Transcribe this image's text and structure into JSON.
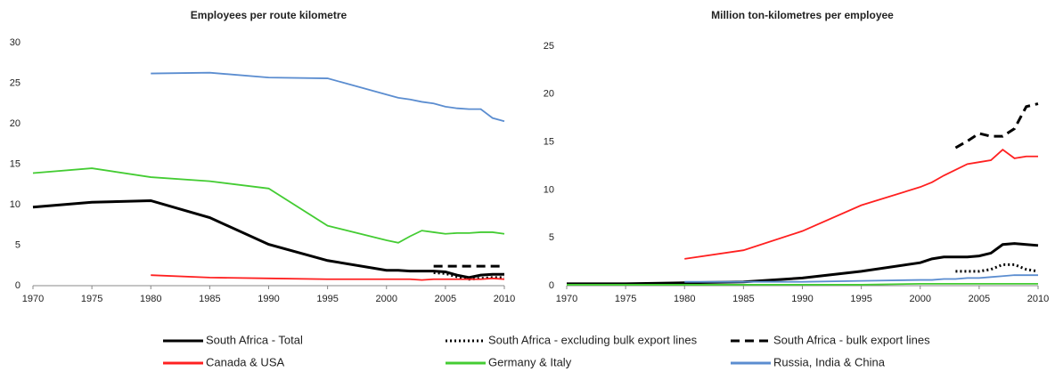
{
  "chart_data": [
    {
      "type": "line",
      "title": "Employees per route kilometre",
      "x": [
        1970,
        1975,
        1980,
        1985,
        1990,
        1995,
        2000,
        2001,
        2002,
        2003,
        2004,
        2005,
        2006,
        2007,
        2008,
        2009,
        2010
      ],
      "xlim": [
        1970,
        2010
      ],
      "xticks": [
        1970,
        1975,
        1980,
        1985,
        1990,
        1995,
        2000,
        2005,
        2010
      ],
      "ylim": [
        0,
        30
      ],
      "yticks": [
        0,
        5,
        10,
        15,
        20,
        25,
        30
      ],
      "series": [
        {
          "name": "South Africa - Total",
          "color": "#000000",
          "style": "solid",
          "linewidth": 3,
          "values": [
            9.7,
            10.3,
            10.5,
            8.4,
            5.1,
            3.1,
            1.9,
            1.9,
            1.8,
            1.8,
            1.8,
            1.7,
            1.3,
            1.0,
            1.3,
            1.4,
            1.4
          ]
        },
        {
          "name": "South Africa - excluding bulk export lines",
          "color": "#000000",
          "style": "dotted",
          "linewidth": 3,
          "values": [
            null,
            null,
            null,
            null,
            null,
            null,
            null,
            null,
            null,
            null,
            1.6,
            1.5,
            1.1,
            0.8,
            0.9,
            1.0,
            1.0
          ]
        },
        {
          "name": "South Africa - bulk export lines",
          "color": "#000000",
          "style": "dashed",
          "linewidth": 3,
          "values": [
            null,
            null,
            null,
            null,
            null,
            null,
            null,
            null,
            null,
            null,
            2.4,
            2.4,
            2.4,
            2.4,
            2.4,
            2.4,
            2.4
          ]
        },
        {
          "name": "Canada & USA",
          "color": "#ff2020",
          "style": "solid",
          "linewidth": 1.8,
          "values": [
            null,
            null,
            1.3,
            1.0,
            0.9,
            0.8,
            0.8,
            0.8,
            0.8,
            0.7,
            0.8,
            0.8,
            0.8,
            0.8,
            0.8,
            0.9,
            0.8
          ]
        },
        {
          "name": "Germany & Italy",
          "color": "#44cc33",
          "style": "solid",
          "linewidth": 1.8,
          "values": [
            13.9,
            14.5,
            13.4,
            12.9,
            12.0,
            7.4,
            5.6,
            5.3,
            6.1,
            6.8,
            6.6,
            6.4,
            6.5,
            6.5,
            6.6,
            6.6,
            6.4
          ]
        },
        {
          "name": "Russia, India & China",
          "color": "#5b8dd0",
          "style": "solid",
          "linewidth": 1.8,
          "values": [
            null,
            null,
            26.2,
            26.3,
            25.7,
            25.6,
            23.6,
            23.2,
            23.0,
            22.7,
            22.5,
            22.1,
            21.9,
            21.8,
            21.8,
            20.7,
            20.3
          ]
        }
      ]
    },
    {
      "type": "line",
      "title": "Million ton-kilometres per employee",
      "x": [
        1970,
        1975,
        1980,
        1985,
        1990,
        1995,
        2000,
        2001,
        2002,
        2003,
        2004,
        2005,
        2006,
        2007,
        2008,
        2009,
        2010
      ],
      "xlim": [
        1970,
        2010
      ],
      "xticks": [
        1970,
        1975,
        1980,
        1985,
        1990,
        1995,
        2000,
        2005,
        2010
      ],
      "ylim": [
        0,
        25
      ],
      "yticks": [
        0,
        5,
        10,
        15,
        20,
        25
      ],
      "series": [
        {
          "color": "#000000",
          "style": "solid",
          "linewidth": 3,
          "values": [
            0.2,
            0.2,
            0.3,
            0.4,
            0.8,
            1.5,
            2.4,
            2.8,
            3.0,
            3.0,
            3.0,
            3.1,
            3.4,
            4.3,
            4.4,
            4.3,
            4.2
          ]
        },
        {
          "color": "#000000",
          "style": "dotted",
          "linewidth": 3,
          "values": [
            null,
            null,
            null,
            null,
            null,
            null,
            null,
            null,
            null,
            1.5,
            1.5,
            1.5,
            1.7,
            2.2,
            2.2,
            1.7,
            1.5
          ]
        },
        {
          "color": "#000000",
          "style": "dashed",
          "linewidth": 3,
          "values": [
            null,
            null,
            null,
            null,
            null,
            null,
            null,
            null,
            null,
            14.4,
            15.1,
            15.9,
            15.6,
            15.6,
            16.4,
            18.7,
            19.0
          ]
        },
        {
          "color": "#ff2020",
          "style": "solid",
          "linewidth": 1.8,
          "values": [
            null,
            null,
            2.8,
            3.7,
            5.7,
            8.4,
            10.3,
            10.8,
            11.5,
            12.1,
            12.7,
            12.9,
            13.1,
            14.2,
            13.3,
            13.5,
            13.5
          ]
        },
        {
          "color": "#44cc33",
          "style": "solid",
          "linewidth": 1.8,
          "values": [
            0.1,
            0.1,
            0.1,
            0.1,
            0.1,
            0.1,
            0.2,
            0.2,
            0.2,
            0.2,
            0.2,
            0.2,
            0.2,
            0.2,
            0.2,
            0.2,
            0.2
          ]
        },
        {
          "color": "#5b8dd0",
          "style": "solid",
          "linewidth": 1.8,
          "values": [
            null,
            null,
            0.4,
            0.4,
            0.4,
            0.5,
            0.6,
            0.6,
            0.7,
            0.7,
            0.8,
            0.8,
            0.9,
            1.0,
            1.1,
            1.1,
            1.1
          ]
        }
      ]
    }
  ]
}
